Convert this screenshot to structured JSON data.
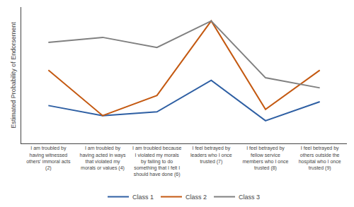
{
  "chart_data": {
    "type": "line",
    "categories": [
      "I am troubled by\nhaving witnessed\nothers' immoral acts\n(2)",
      "I am troubled by\nhaving acted in ways\nthat violated my\nmorals or values (4)",
      "I am troubled because\nI violated my morals\nby failing to do\nsomething that I felt I\nshould have done (6)",
      "I feel betrayed by\nleaders who I once\ntrusted (7)",
      "I feel betrayed by\nfellow service\nmembers who I once\ntrusted (8)",
      "I feel betrayed by\nothers outside the\nhospital who I once\ntrusted (9)"
    ],
    "ylabel": "Estimated Probability of Endorsement",
    "series": [
      {
        "name": "Class 1",
        "color": "#2e5fa3",
        "values": [
          0.3,
          0.22,
          0.25,
          0.5,
          0.18,
          0.33
        ]
      },
      {
        "name": "Class 2",
        "color": "#c45911",
        "values": [
          0.58,
          0.22,
          0.38,
          0.97,
          0.27,
          0.58
        ]
      },
      {
        "name": "Class 3",
        "color": "#808080",
        "values": [
          0.8,
          0.84,
          0.76,
          0.97,
          0.52,
          0.44
        ]
      }
    ],
    "ylim": [
      0.0,
      1.08
    ],
    "yticks": [],
    "tick_labels": "x",
    "grid": false,
    "legend": "bottom"
  }
}
